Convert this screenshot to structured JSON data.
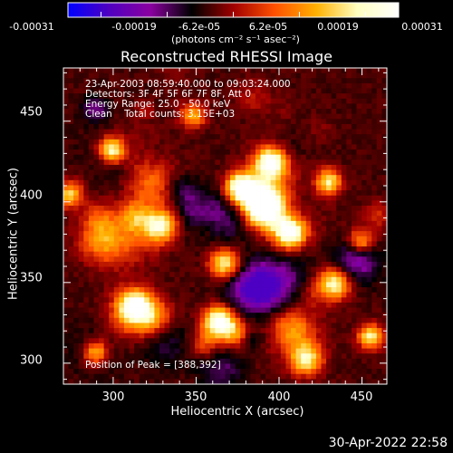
{
  "chart_data": {
    "type": "heatmap",
    "title": "Reconstructed RHESSI Image",
    "xlabel": "Heliocentric X (arcsec)",
    "ylabel": "Heliocentric Y (arcsec)",
    "xlim": [
      270,
      465
    ],
    "ylim": [
      287,
      483
    ],
    "x_ticks": [
      300,
      350,
      400,
      450
    ],
    "y_ticks": [
      300,
      350,
      400,
      450
    ],
    "info_lines": [
      "23-Apr-2003 08:59:40.000 to 09:03:24.000",
      "Detectors: 3F 4F 5F 6F 7F 8F, Att 0",
      "Energy Range: 25.0 - 50.0 keV",
      "Clean    Total counts: 3.15E+03"
    ],
    "peak_label": "Position of Peak = [388,392]",
    "peak_position": [
      388,
      392
    ],
    "colorbar": {
      "ticks": [
        "-0.00031",
        "-0.00019",
        "-6.2e-05",
        "6.2e-05",
        "0.00019",
        "0.00031"
      ],
      "range": [
        -0.00031,
        0.00031
      ],
      "units": "(photons cm⁻² s⁻¹ asec⁻²)",
      "colors": [
        "#0000ff",
        "#5000c0",
        "#8a00a0",
        "#000000",
        "#a00000",
        "#ff5000",
        "#ffb000",
        "#ffffc0",
        "#ffffff"
      ]
    },
    "grid": false
  },
  "footer": {
    "timestamp": "30-Apr-2022 22:58"
  }
}
